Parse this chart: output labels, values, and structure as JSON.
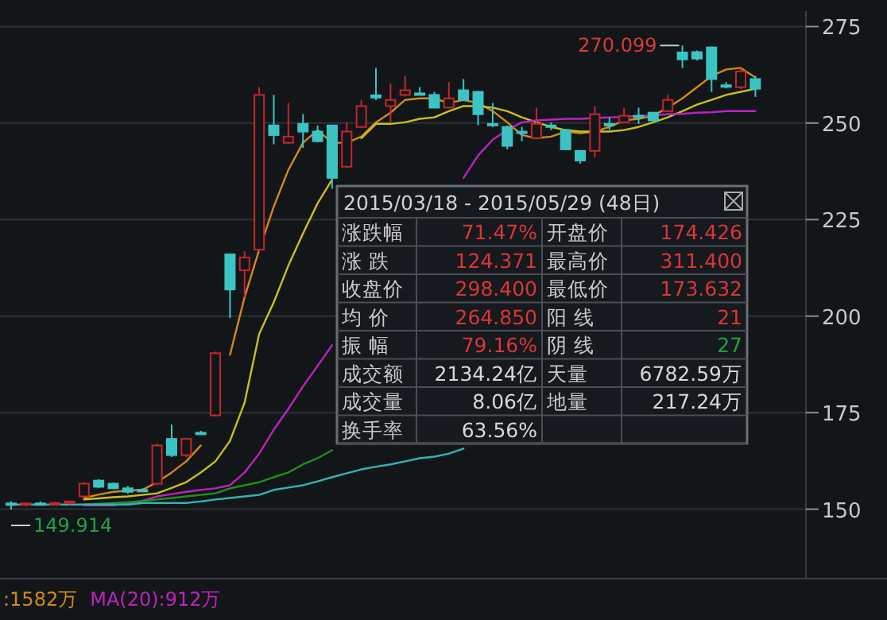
{
  "chart_data": {
    "type": "candlestick",
    "categories": [
      null,
      null,
      null,
      null,
      null,
      null,
      null,
      null,
      null,
      null,
      null,
      null,
      null,
      null,
      null,
      null,
      null,
      null,
      null,
      null,
      null,
      null,
      null,
      null,
      null,
      null,
      null,
      null,
      null,
      null,
      null,
      null,
      null,
      null,
      null,
      null,
      null,
      null,
      null,
      null,
      null,
      null,
      null,
      null,
      null,
      null,
      null,
      null,
      null,
      null,
      null,
      null
    ],
    "ohlc": [
      [
        151.5,
        152.0,
        149.914,
        151.2
      ],
      [
        151.3,
        151.8,
        150.8,
        151.5
      ],
      [
        151.5,
        152.0,
        151.0,
        151.3
      ],
      [
        151.4,
        151.9,
        151.0,
        151.6
      ],
      [
        151.6,
        152.2,
        151.2,
        152.0
      ],
      [
        153.3,
        157.0,
        153.0,
        156.6
      ],
      [
        157.4,
        157.8,
        155.5,
        155.8
      ],
      [
        156.6,
        156.9,
        155.2,
        155.4
      ],
      [
        155.4,
        156.0,
        154.0,
        154.5
      ],
      [
        155.0,
        155.4,
        154.6,
        155.0
      ],
      [
        156.6,
        167.0,
        156.2,
        166.5
      ],
      [
        168.2,
        171.9,
        163.5,
        164.0
      ],
      [
        164.0,
        168.5,
        163.5,
        168.2
      ],
      [
        169.8,
        170.3,
        169.3,
        169.8
      ],
      [
        174.3,
        190.8,
        174.0,
        190.4
      ],
      [
        216.0,
        216.2,
        199.5,
        206.9
      ],
      [
        211.9,
        216.8,
        204.9,
        215.2
      ],
      [
        217.2,
        259.3,
        216.8,
        257.3
      ],
      [
        249.4,
        257.3,
        244.5,
        246.9
      ],
      [
        244.9,
        255.2,
        244.6,
        246.5
      ],
      [
        249.8,
        252.3,
        243.6,
        247.8
      ],
      [
        247.8,
        249.4,
        245.0,
        245.3
      ],
      [
        249.4,
        249.6,
        233.0,
        235.8
      ],
      [
        238.7,
        250.2,
        238.5,
        247.8
      ],
      [
        249.0,
        256.0,
        248.8,
        254.4
      ],
      [
        257.2,
        264.3,
        256.0,
        256.6
      ],
      [
        254.4,
        260.2,
        250.2,
        256.0
      ],
      [
        257.3,
        262.2,
        257.0,
        258.5
      ],
      [
        257.7,
        259.3,
        257.3,
        257.7
      ],
      [
        257.3,
        258.1,
        254.0,
        254.0
      ],
      [
        254.0,
        260.6,
        253.8,
        256.4
      ],
      [
        258.5,
        261.4,
        255.8,
        256.0
      ],
      [
        258.1,
        258.3,
        249.4,
        252.3
      ],
      [
        249.8,
        255.2,
        249.0,
        249.8
      ],
      [
        249.0,
        249.4,
        243.2,
        244.1
      ],
      [
        247.8,
        249.0,
        245.3,
        247.8
      ],
      [
        246.1,
        254.0,
        245.9,
        249.8
      ],
      [
        249.4,
        250.2,
        248.2,
        249.4
      ],
      [
        248.2,
        248.4,
        243.0,
        243.2
      ],
      [
        242.8,
        243.0,
        239.5,
        240.3
      ],
      [
        242.8,
        254.4,
        241.2,
        252.3
      ],
      [
        249.8,
        251.5,
        248.2,
        249.8
      ],
      [
        250.2,
        254.0,
        250.0,
        251.9
      ],
      [
        251.9,
        254.0,
        249.8,
        251.9
      ],
      [
        252.7,
        252.9,
        250.5,
        250.7
      ],
      [
        253.1,
        257.3,
        252.9,
        256.0
      ],
      [
        268.3,
        270.099,
        264.3,
        266.5
      ],
      [
        268.4,
        268.8,
        266.2,
        266.7
      ],
      [
        269.6,
        269.8,
        258.1,
        261.4
      ],
      [
        259.8,
        260.6,
        259.0,
        259.8
      ],
      [
        259.3,
        264.3,
        258.8,
        263.4
      ],
      [
        261.4,
        262.2,
        256.8,
        258.9
      ]
    ],
    "series": [
      {
        "type": "line",
        "color": "#d08a1a",
        "values": [
          null,
          null,
          null,
          null,
          null,
          152.9,
          153.8,
          154.5,
          154.8,
          155.0,
          157.0,
          159.5,
          162.4,
          166.5,
          null,
          190.0,
          204.9,
          217.2,
          228.4,
          237.9,
          244.9,
          248.2,
          244.9,
          244.9,
          246.5,
          250.2,
          252.7,
          256.0,
          256.4,
          256.4,
          255.2,
          256.0,
          255.2,
          253.1,
          250.2,
          246.9,
          246.1,
          246.5,
          247.8,
          247.4,
          247.8,
          249.0,
          250.7,
          251.1,
          251.9,
          254.0,
          256.4,
          259.3,
          262.2,
          263.9,
          264.3,
          261.8
        ]
      },
      {
        "type": "line",
        "color": "#c8c020",
        "values": [
          null,
          null,
          null,
          null,
          null,
          152.5,
          152.8,
          153.1,
          153.3,
          153.7,
          154.1,
          155.5,
          157.0,
          159.5,
          162.4,
          167.7,
          177.6,
          195.4,
          203.6,
          213.1,
          221.4,
          229.2,
          235.4,
          null,
          246.1,
          249.8,
          249.8,
          250.2,
          251.1,
          251.5,
          253.1,
          254.4,
          254.4,
          254.0,
          253.1,
          251.5,
          250.2,
          249.0,
          248.2,
          247.8,
          247.8,
          247.8,
          248.2,
          249.0,
          250.2,
          251.5,
          253.1,
          254.8,
          256.0,
          257.3,
          258.1,
          258.9
        ]
      },
      {
        "type": "line",
        "color": "#c020c0",
        "values": [
          null,
          null,
          null,
          null,
          null,
          151.0,
          151.0,
          151.0,
          151.5,
          152.2,
          153.3,
          153.9,
          154.5,
          155.0,
          155.4,
          156.2,
          159.5,
          164.4,
          170.6,
          176.0,
          181.8,
          187.1,
          192.5,
          null,
          null,
          null,
          null,
          null,
          null,
          null,
          null,
          235.8,
          241.6,
          245.7,
          248.2,
          250.2,
          250.7,
          250.9,
          251.1,
          251.1,
          251.3,
          251.5,
          251.6,
          251.9,
          252.0,
          252.3,
          252.4,
          252.7,
          252.8,
          253.1,
          253.1,
          253.1
        ]
      },
      {
        "type": "line",
        "color": "#1f8f1f",
        "values": [
          null,
          null,
          null,
          null,
          null,
          151.2,
          151.4,
          151.6,
          151.8,
          152.1,
          152.5,
          152.9,
          153.3,
          153.7,
          154.1,
          155.4,
          156.2,
          157.0,
          158.3,
          159.5,
          161.6,
          163.2,
          165.3,
          null,
          null,
          null,
          null,
          null,
          null,
          null,
          null,
          null,
          null,
          null,
          null,
          null,
          null,
          null,
          null,
          null,
          null,
          null,
          null,
          null,
          null,
          null,
          null,
          null,
          null,
          null,
          null,
          null
        ]
      },
      {
        "type": "line",
        "color": "#30b4b4",
        "values": [
          151.2,
          151.2,
          151.2,
          151.2,
          151.2,
          151.2,
          151.2,
          151.2,
          151.2,
          151.6,
          151.6,
          151.6,
          151.6,
          152.0,
          152.5,
          152.9,
          153.3,
          153.7,
          155.0,
          155.6,
          156.2,
          157.2,
          158.3,
          159.3,
          160.3,
          161.0,
          161.6,
          162.4,
          163.2,
          163.6,
          164.4,
          165.7,
          null,
          null,
          null,
          null,
          null,
          null,
          null,
          null,
          null,
          null,
          null,
          null,
          null,
          null,
          null,
          null,
          null,
          null,
          null,
          null
        ]
      }
    ],
    "ylim": [
      132,
      279
    ],
    "yticks": [
      150,
      175,
      200,
      225,
      250,
      275
    ],
    "grid": "y",
    "tick_labels": "y",
    "annotations": [
      "2015/03/18 - 2015/05/29 (48日)",
      "涨跌幅",
      "71.47%",
      "开盘价",
      "174.426",
      "涨 跌",
      "124.371",
      "最高价",
      "311.400",
      "收盘价",
      "298.400",
      "最低价",
      "173.632",
      "均 价",
      "264.850",
      "阳 线",
      "21",
      "振 幅",
      "79.16%",
      "阴 线",
      "27",
      "成交额",
      "2134.24亿",
      "天量",
      "6782.59万",
      "成交量",
      "8.06亿",
      "地量",
      "217.24万",
      "换手率",
      "63.56%",
      "270.099",
      "149.914",
      ":1582万",
      "MA(20):912万"
    ]
  }
}
